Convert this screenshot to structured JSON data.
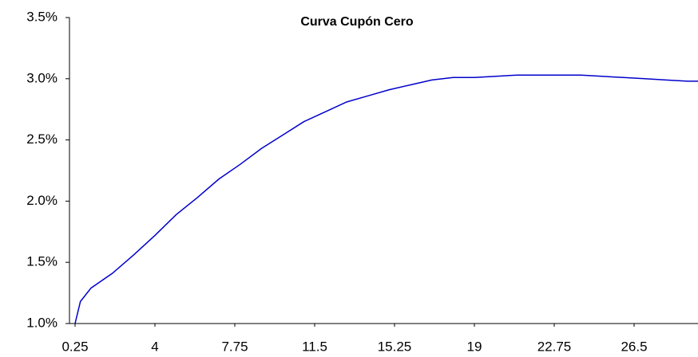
{
  "chart_data": {
    "type": "line",
    "title": "Curva Cupón Cero",
    "x": [
      0.25,
      0.5,
      1,
      1.5,
      2,
      3,
      4,
      5,
      6,
      7,
      8,
      9,
      10,
      11,
      12,
      13,
      14,
      15,
      16,
      17,
      18,
      19,
      20,
      21,
      22,
      23,
      24,
      25,
      26,
      27,
      28,
      29,
      29.5
    ],
    "series": [
      {
        "name": "Curva Cupón Cero",
        "color": "#0000cc",
        "values": [
          1.0,
          1.18,
          1.29,
          1.35,
          1.41,
          1.56,
          1.72,
          1.89,
          2.03,
          2.18,
          2.3,
          2.43,
          2.54,
          2.65,
          2.73,
          2.81,
          2.86,
          2.91,
          2.95,
          2.99,
          3.01,
          3.01,
          3.02,
          3.03,
          3.03,
          3.03,
          3.03,
          3.02,
          3.01,
          3.0,
          2.99,
          2.98,
          2.98
        ]
      }
    ],
    "xlim": [
      0.25,
      29.5
    ],
    "xticks": [
      0.25,
      4,
      7.75,
      11.5,
      15.25,
      19,
      22.75,
      26.5
    ],
    "ylim": [
      1.0,
      3.5
    ],
    "yticks": [
      {
        "value": 1.0,
        "label": "1.0%"
      },
      {
        "value": 1.5,
        "label": "1.5%"
      },
      {
        "value": 2.0,
        "label": "2.0%"
      },
      {
        "value": 2.5,
        "label": "2.5%"
      },
      {
        "value": 3.0,
        "label": "3.0%"
      },
      {
        "value": 3.5,
        "label": "3.5%"
      }
    ]
  }
}
